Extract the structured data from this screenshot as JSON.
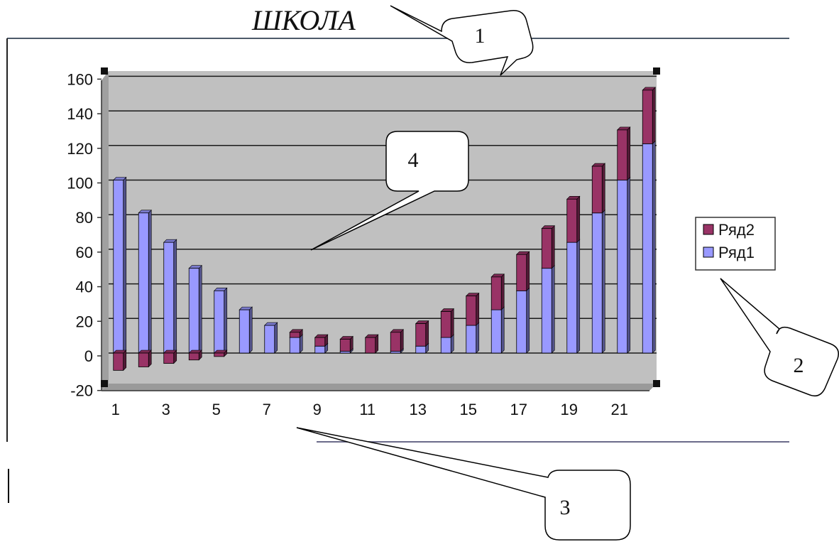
{
  "title": "ШКОЛА",
  "callouts": [
    {
      "id": "title-callout",
      "label": "1"
    },
    {
      "id": "legend-callout",
      "label": "2"
    },
    {
      "id": "x-axis-callout",
      "label": "3"
    },
    {
      "id": "plot-area-callout",
      "label": "4"
    }
  ],
  "chart_data": {
    "type": "bar",
    "stacked": true,
    "categories": [
      "1",
      "2",
      "3",
      "4",
      "5",
      "6",
      "7",
      "8",
      "9",
      "10",
      "11",
      "12",
      "13",
      "14",
      "15",
      "16",
      "17",
      "18",
      "19",
      "20",
      "21",
      "22"
    ],
    "x_tick_labels": [
      "1",
      "3",
      "5",
      "7",
      "9",
      "11",
      "13",
      "15",
      "17",
      "19",
      "21"
    ],
    "y_tick_labels": [
      "-20",
      "0",
      "20",
      "40",
      "60",
      "80",
      "100",
      "120",
      "140",
      "160"
    ],
    "ylim": [
      -20,
      160
    ],
    "grid": true,
    "legend_position": "right",
    "series": [
      {
        "name": "Ряд1",
        "color": "#9999ff",
        "values": [
          100,
          81,
          64,
          49,
          36,
          25,
          16,
          9,
          4,
          1,
          0,
          1,
          4,
          9,
          16,
          25,
          36,
          49,
          64,
          81,
          100,
          121
        ]
      },
      {
        "name": "Ряд2",
        "color": "#993366",
        "values": [
          -10,
          -8,
          -6,
          -4,
          -2,
          0,
          0,
          3,
          5,
          7,
          9,
          11,
          13,
          15,
          17,
          19,
          21,
          23,
          25,
          27,
          29,
          31
        ]
      }
    ]
  }
}
